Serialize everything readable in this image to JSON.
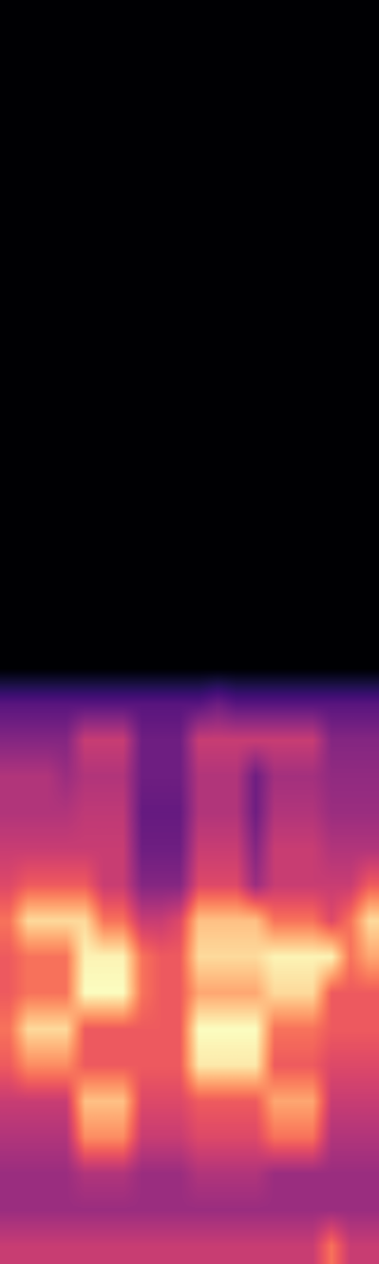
{
  "chart_data": {
    "type": "heatmap",
    "color": "magma",
    "tick_labels": false,
    "cells": [
      [
        0,
        0,
        0,
        0,
        0,
        0,
        0,
        0,
        0,
        0,
        0,
        0,
        0,
        0,
        0,
        0,
        0,
        0,
        0,
        0
      ],
      [
        0,
        0,
        0,
        0,
        0,
        0,
        0,
        0,
        0,
        0,
        0,
        0,
        0,
        0,
        0,
        0,
        0,
        0,
        0,
        0
      ],
      [
        0,
        0,
        0,
        0,
        0,
        0,
        0,
        0,
        0,
        0,
        0,
        0,
        0,
        0,
        0,
        0,
        0,
        0,
        0,
        0
      ],
      [
        0,
        0,
        0,
        0,
        0,
        0,
        0,
        0,
        0,
        0,
        0,
        0,
        0,
        0,
        0,
        0,
        0,
        0,
        0,
        0
      ],
      [
        0,
        0,
        0,
        0,
        0,
        0,
        0,
        0,
        0,
        0,
        0,
        0,
        0,
        0,
        0,
        0,
        0,
        0,
        0,
        0
      ],
      [
        0,
        0,
        0,
        0,
        0,
        0,
        0,
        0,
        0,
        0,
        0,
        0,
        0,
        0,
        0,
        0,
        0,
        0,
        0,
        0
      ],
      [
        0,
        0,
        0,
        0,
        0,
        0,
        0,
        0,
        0,
        0,
        0,
        0,
        0,
        0,
        0,
        0,
        0,
        0,
        0,
        0
      ],
      [
        0,
        0,
        0,
        0,
        0,
        0,
        0,
        0,
        0,
        0,
        0,
        0,
        0,
        0,
        0,
        0,
        0,
        0,
        0,
        0
      ],
      [
        0,
        0,
        0,
        0,
        0,
        0,
        0,
        0,
        0,
        0,
        0,
        0,
        0,
        0,
        0,
        0,
        0,
        0,
        0,
        0
      ],
      [
        0,
        0,
        0,
        0,
        0,
        0,
        0,
        0,
        0,
        0,
        0,
        0,
        0,
        0,
        0,
        0,
        0,
        0,
        0,
        0
      ],
      [
        0,
        0,
        0,
        0,
        0,
        0,
        0,
        0,
        0,
        0,
        0,
        0,
        0,
        0,
        0,
        0,
        0,
        0,
        0,
        0
      ],
      [
        0,
        0,
        0,
        0,
        0,
        0,
        0,
        0,
        0,
        0,
        0,
        0,
        0,
        0,
        0,
        0,
        0,
        0,
        0,
        0
      ],
      [
        0,
        0,
        0,
        0,
        0,
        0,
        0,
        0,
        0,
        0,
        0,
        0,
        0,
        0,
        0,
        0,
        0,
        0,
        0,
        0
      ],
      [
        0,
        0,
        0,
        0,
        0,
        0,
        0,
        0,
        0,
        0,
        0,
        0,
        0,
        0,
        0,
        0,
        0,
        0,
        0,
        0
      ],
      [
        0,
        0,
        0,
        0,
        0,
        0,
        0,
        0,
        0,
        0,
        0,
        0,
        0,
        0,
        0,
        0,
        0,
        0,
        0,
        0
      ],
      [
        0,
        0,
        0,
        0,
        0,
        0,
        0,
        0,
        0,
        0,
        0,
        0,
        0,
        0,
        0,
        0,
        0,
        0,
        0,
        0
      ],
      [
        0,
        0,
        0,
        0,
        0,
        0,
        0,
        0,
        0,
        0,
        0,
        0,
        0,
        0,
        0,
        0,
        0,
        0,
        0,
        0
      ],
      [
        0,
        0,
        0,
        0,
        0,
        0,
        0,
        0,
        0,
        0,
        0,
        0,
        0,
        0,
        0,
        0,
        0,
        0,
        0,
        0
      ],
      [
        0,
        0,
        0,
        0,
        0,
        0,
        0,
        0,
        0,
        0,
        0,
        0,
        0,
        0,
        0,
        0,
        0,
        0,
        0,
        0
      ],
      [
        0.25,
        0.25,
        0.25,
        0.25,
        0.25,
        0.25,
        0.25,
        0.25,
        0.25,
        0.25,
        0.25,
        0.3,
        0.25,
        0.25,
        0.25,
        0.25,
        0.25,
        0.25,
        0.25,
        0.25
      ],
      [
        0.35,
        0.35,
        0.35,
        0.35,
        0.5,
        0.5,
        0.5,
        0.3,
        0.3,
        0.3,
        0.5,
        0.5,
        0.5,
        0.5,
        0.5,
        0.5,
        0.5,
        0.35,
        0.35,
        0.35
      ],
      [
        0.45,
        0.45,
        0.45,
        0.4,
        0.45,
        0.45,
        0.45,
        0.3,
        0.3,
        0.3,
        0.45,
        0.45,
        0.45,
        0.3,
        0.42,
        0.42,
        0.42,
        0.38,
        0.38,
        0.38
      ],
      [
        0.45,
        0.45,
        0.45,
        0.45,
        0.48,
        0.48,
        0.48,
        0.28,
        0.28,
        0.28,
        0.45,
        0.45,
        0.45,
        0.3,
        0.45,
        0.45,
        0.45,
        0.4,
        0.4,
        0.4
      ],
      [
        0.5,
        0.5,
        0.5,
        0.5,
        0.5,
        0.5,
        0.5,
        0.3,
        0.3,
        0.3,
        0.5,
        0.5,
        0.5,
        0.35,
        0.5,
        0.5,
        0.5,
        0.45,
        0.45,
        0.45
      ],
      [
        0.55,
        0.6,
        0.6,
        0.6,
        0.6,
        0.5,
        0.5,
        0.35,
        0.35,
        0.35,
        0.55,
        0.55,
        0.55,
        0.4,
        0.5,
        0.5,
        0.5,
        0.5,
        0.5,
        0.6
      ],
      [
        0.65,
        0.85,
        0.85,
        0.85,
        0.85,
        0.65,
        0.65,
        0.5,
        0.5,
        0.55,
        0.8,
        0.8,
        0.8,
        0.8,
        0.65,
        0.65,
        0.65,
        0.55,
        0.65,
        0.85
      ],
      [
        0.6,
        0.65,
        0.65,
        0.65,
        0.9,
        0.9,
        0.9,
        0.65,
        0.6,
        0.6,
        0.85,
        0.85,
        0.85,
        0.85,
        0.9,
        0.9,
        0.9,
        0.9,
        0.65,
        0.75
      ],
      [
        0.6,
        0.65,
        0.65,
        0.65,
        0.92,
        0.92,
        0.92,
        0.65,
        0.6,
        0.6,
        0.75,
        0.75,
        0.75,
        0.75,
        0.85,
        0.85,
        0.85,
        0.6,
        0.6,
        0.6
      ],
      [
        0.65,
        0.85,
        0.85,
        0.85,
        0.6,
        0.6,
        0.6,
        0.6,
        0.6,
        0.6,
        0.92,
        0.92,
        0.92,
        0.92,
        0.65,
        0.65,
        0.65,
        0.6,
        0.6,
        0.6
      ],
      [
        0.6,
        0.7,
        0.7,
        0.7,
        0.6,
        0.6,
        0.6,
        0.6,
        0.6,
        0.6,
        0.88,
        0.88,
        0.88,
        0.88,
        0.6,
        0.6,
        0.6,
        0.55,
        0.55,
        0.55
      ],
      [
        0.5,
        0.5,
        0.5,
        0.5,
        0.8,
        0.8,
        0.8,
        0.55,
        0.55,
        0.55,
        0.6,
        0.6,
        0.6,
        0.6,
        0.75,
        0.75,
        0.75,
        0.5,
        0.5,
        0.5
      ],
      [
        0.45,
        0.45,
        0.45,
        0.45,
        0.7,
        0.7,
        0.7,
        0.5,
        0.5,
        0.5,
        0.55,
        0.55,
        0.55,
        0.55,
        0.65,
        0.65,
        0.65,
        0.45,
        0.45,
        0.45
      ],
      [
        0.4,
        0.4,
        0.4,
        0.4,
        0.45,
        0.45,
        0.45,
        0.4,
        0.4,
        0.4,
        0.45,
        0.45,
        0.45,
        0.45,
        0.4,
        0.4,
        0.4,
        0.4,
        0.4,
        0.4
      ],
      [
        0.4,
        0.4,
        0.4,
        0.4,
        0.4,
        0.4,
        0.4,
        0.4,
        0.4,
        0.4,
        0.4,
        0.4,
        0.4,
        0.4,
        0.4,
        0.4,
        0.4,
        0.4,
        0.4,
        0.4
      ],
      [
        0.5,
        0.5,
        0.5,
        0.5,
        0.5,
        0.5,
        0.5,
        0.5,
        0.5,
        0.5,
        0.5,
        0.5,
        0.5,
        0.5,
        0.5,
        0.5,
        0.5,
        0.65,
        0.5,
        0.5
      ]
    ]
  }
}
